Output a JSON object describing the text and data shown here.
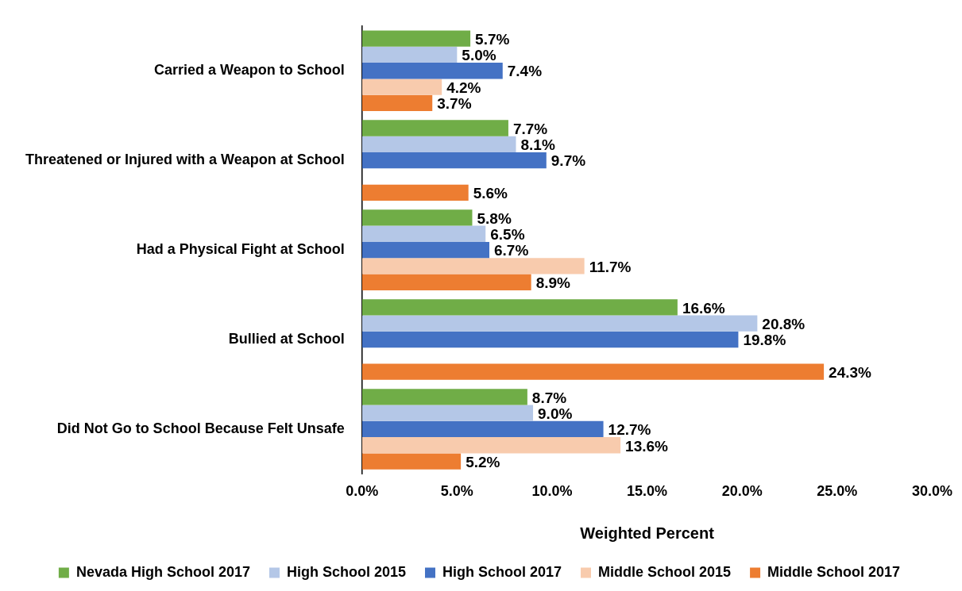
{
  "chart_data": {
    "type": "bar",
    "orientation": "horizontal",
    "xlabel": "Weighted Percent",
    "categories": [
      "Carried a Weapon to School",
      "Threatened or Injured with a Weapon at School",
      "Had a Physical Fight at School",
      "Bullied at School",
      "Did Not Go to School Because Felt Unsafe"
    ],
    "series": [
      {
        "name": "Nevada High School 2017",
        "color": "#70ad47",
        "values": [
          5.7,
          7.7,
          5.8,
          16.6,
          8.7
        ],
        "value_labels": [
          "5.7%",
          "7.7%",
          "5.8%",
          "16.6%",
          "8.7%"
        ]
      },
      {
        "name": "High School 2015",
        "color": "#b4c7e7",
        "values": [
          5.0,
          8.1,
          6.5,
          20.8,
          9.0
        ],
        "value_labels": [
          "5.0%",
          "8.1%",
          "6.5%",
          "20.8%",
          "9.0%"
        ]
      },
      {
        "name": "High School 2017",
        "color": "#4472c4",
        "values": [
          7.4,
          9.7,
          6.7,
          19.8,
          12.7
        ],
        "value_labels": [
          "7.4%",
          "9.7%",
          "6.7%",
          "19.8%",
          "12.7%"
        ]
      },
      {
        "name": "Middle School 2015",
        "color": "#f8cbad",
        "values": [
          4.2,
          null,
          11.7,
          null,
          13.6
        ],
        "value_labels": [
          "4.2%",
          null,
          "11.7%",
          null,
          "13.6%"
        ]
      },
      {
        "name": "Middle School 2017",
        "color": "#ed7d31",
        "values": [
          3.7,
          5.6,
          8.9,
          24.3,
          5.2
        ],
        "value_labels": [
          "3.7%",
          "5.6%",
          "8.9%",
          "24.3%",
          "5.2%"
        ]
      }
    ],
    "xlim": [
      0,
      30
    ],
    "xticks": [
      {
        "value": 0,
        "label": "0.0%"
      },
      {
        "value": 5,
        "label": "5.0%"
      },
      {
        "value": 10,
        "label": "10.0%"
      },
      {
        "value": 15,
        "label": "15.0%"
      },
      {
        "value": 20,
        "label": "20.0%"
      },
      {
        "value": 25,
        "label": "25.0%"
      },
      {
        "value": 30,
        "label": "30.0%"
      }
    ],
    "grid": false,
    "legend": "bottom"
  }
}
